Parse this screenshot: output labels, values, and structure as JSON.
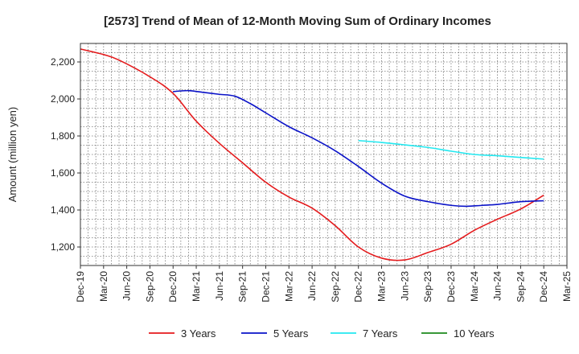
{
  "chart_data": {
    "type": "line",
    "title": "[2573]  Trend of Mean of 12-Month Moving Sum of Ordinary Incomes",
    "xlabel": "",
    "ylabel": "Amount (million yen)",
    "ylim": [
      1100,
      2300
    ],
    "yticks": [
      1200,
      1400,
      1600,
      1800,
      2000,
      2200
    ],
    "ytick_labels": [
      "1,200",
      "1,400",
      "1,600",
      "1,800",
      "2,000",
      "2,200"
    ],
    "xlim": [
      0,
      63
    ],
    "xtick_labels": [
      "Dec-19",
      "Mar-20",
      "Jun-20",
      "Sep-20",
      "Dec-20",
      "Mar-21",
      "Jun-21",
      "Sep-21",
      "Dec-21",
      "Mar-22",
      "Jun-22",
      "Sep-22",
      "Dec-22",
      "Mar-23",
      "Jun-23",
      "Sep-23",
      "Dec-23",
      "Mar-24",
      "Jun-24",
      "Sep-24",
      "Dec-24",
      "Mar-25"
    ],
    "grid": true,
    "legend_position": "bottom",
    "series": [
      {
        "name": "3 Years",
        "color": "#e41a1c",
        "x": [
          0,
          3,
          5,
          9,
          12,
          15,
          18,
          21,
          24,
          27,
          30,
          33,
          36,
          39,
          42,
          45,
          48,
          51,
          54,
          57,
          60
        ],
        "values": [
          2270,
          2240,
          2210,
          2120,
          2030,
          1880,
          1760,
          1655,
          1550,
          1470,
          1410,
          1315,
          1200,
          1140,
          1130,
          1170,
          1215,
          1290,
          1350,
          1405,
          1480
        ]
      },
      {
        "name": "5 Years",
        "color": "#0a12c8",
        "x": [
          12,
          14,
          16,
          18,
          20,
          22,
          24,
          27,
          30,
          33,
          36,
          39,
          42,
          45,
          48,
          50,
          52,
          54,
          57,
          60
        ],
        "values": [
          2040,
          2045,
          2035,
          2025,
          2015,
          1975,
          1925,
          1850,
          1790,
          1720,
          1635,
          1545,
          1475,
          1445,
          1425,
          1420,
          1425,
          1430,
          1445,
          1450
        ]
      },
      {
        "name": "7 Years",
        "color": "#22e8f0",
        "x": [
          36,
          39,
          42,
          45,
          48,
          51,
          54,
          57,
          60
        ],
        "values": [
          1775,
          1765,
          1752,
          1738,
          1718,
          1700,
          1693,
          1684,
          1675
        ]
      },
      {
        "name": "10 Years",
        "color": "#1b8a1b",
        "x": [],
        "values": []
      }
    ]
  }
}
